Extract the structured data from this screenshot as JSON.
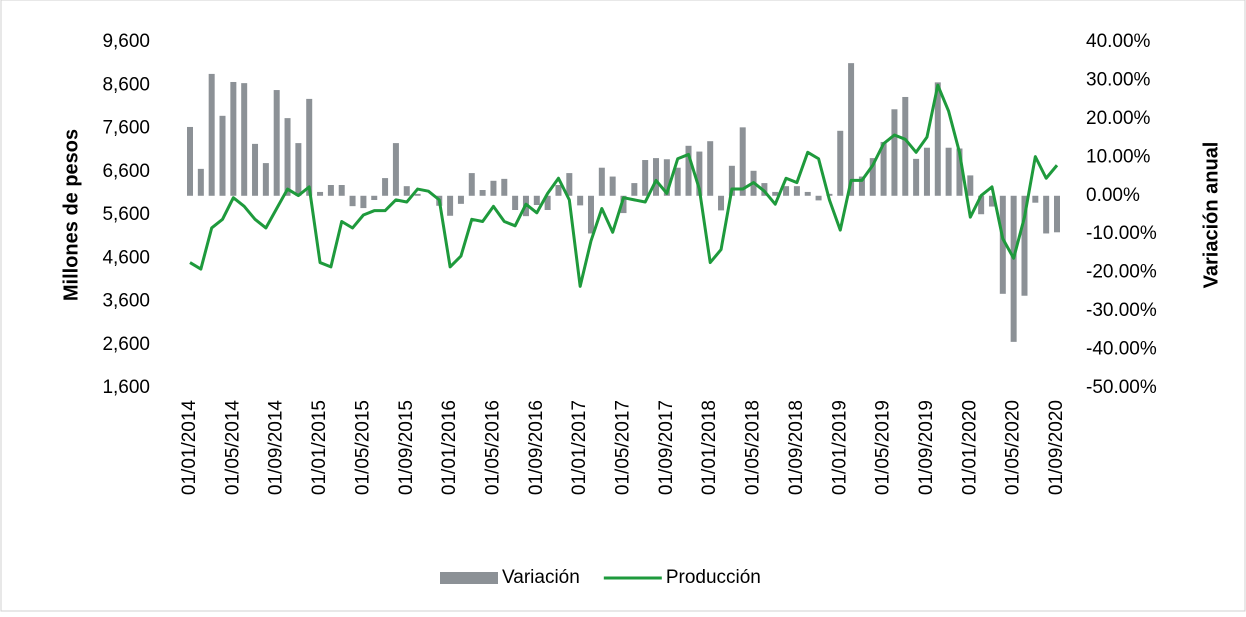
{
  "chart_data": {
    "type": "combo",
    "ylabel": "Millones de pesos",
    "y2label": "Variación anual",
    "categories": [
      "01/01/2014",
      null,
      null,
      null,
      "01/05/2014",
      null,
      null,
      null,
      "01/09/2014",
      null,
      null,
      null,
      "01/01/2015",
      null,
      null,
      null,
      "01/05/2015",
      null,
      null,
      null,
      "01/09/2015",
      null,
      null,
      null,
      "01/01/2016",
      null,
      null,
      null,
      "01/05/2016",
      null,
      null,
      null,
      "01/09/2016",
      null,
      null,
      null,
      "01/01/2017",
      null,
      null,
      null,
      "01/05/2017",
      null,
      null,
      null,
      "01/09/2017",
      null,
      null,
      null,
      "01/01/2018",
      null,
      null,
      null,
      "01/05/2018",
      null,
      null,
      null,
      "01/09/2018",
      null,
      null,
      null,
      "01/01/2019",
      null,
      null,
      null,
      "01/05/2019",
      null,
      null,
      null,
      "01/09/2019",
      null,
      null,
      null,
      "01/01/2020",
      null,
      null,
      null,
      "01/05/2020",
      null,
      null,
      null,
      "01/09/2020"
    ],
    "series": [
      {
        "name": "Variación",
        "type": "bar",
        "axis": "y2",
        "color": "#8c9196",
        "values": [
          17.9,
          7,
          31.7,
          20.8,
          29.6,
          29.3,
          13.5,
          8.5,
          27.5,
          20.2,
          13.7,
          25.2,
          1,
          2.8,
          2.8,
          -2.7,
          -3.2,
          -1.1,
          4.6,
          13.7,
          2.5,
          0.5,
          0,
          -2.6,
          -5.2,
          -2.1,
          5.9,
          1.5,
          3.9,
          4.4,
          -3.7,
          -5.3,
          -2.4,
          -3.7,
          2.8,
          5.9,
          -2.5,
          -9.8,
          7.3,
          5,
          -4.5,
          3.3,
          9.3,
          9.8,
          9.5,
          7.3,
          13,
          11.5,
          14.2,
          -3.8,
          7.8,
          17.8,
          6.5,
          3.3,
          1,
          2.5,
          2.5,
          1,
          -1.2,
          0.5,
          16.9,
          34.5,
          5,
          9.8,
          14,
          22.5,
          25.7,
          9.6,
          12.5,
          29.5,
          12.5,
          12.3,
          5.3,
          -4.8,
          -2.8,
          -25.5,
          -38,
          -26,
          -1.8,
          -9.8,
          -9.5
        ]
      },
      {
        "name": "Producción",
        "type": "line",
        "color": "#1e9a3c",
        "values": [
          4500,
          4350,
          5300,
          5500,
          6000,
          5800,
          5500,
          5300,
          5750,
          6200,
          6050,
          6250,
          4500,
          4400,
          5450,
          5300,
          5600,
          5700,
          5700,
          5950,
          5900,
          6200,
          6150,
          5950,
          4400,
          4650,
          5500,
          5450,
          5800,
          5450,
          5350,
          5850,
          5650,
          6100,
          6450,
          5950,
          3950,
          5000,
          5750,
          5200,
          6000,
          5950,
          5900,
          6400,
          6100,
          6900,
          7000,
          6200,
          4500,
          4800,
          6200,
          6200,
          6350,
          6150,
          5850,
          6450,
          6350,
          7050,
          6900,
          5950,
          5250,
          6400,
          6400,
          6750,
          7250,
          7450,
          7350,
          7050,
          7400,
          8600,
          8000,
          7050,
          5550,
          6050,
          6250,
          5050,
          4600,
          5550,
          6950,
          6450,
          6750
        ]
      }
    ],
    "ylim": [
      1600,
      9600
    ],
    "yticks": [
      {
        "value": 1600,
        "label": "1,600"
      },
      {
        "value": 2600,
        "label": "2,600"
      },
      {
        "value": 3600,
        "label": "3,600"
      },
      {
        "value": 4600,
        "label": "4,600"
      },
      {
        "value": 5600,
        "label": "5,600"
      },
      {
        "value": 6600,
        "label": "6,600"
      },
      {
        "value": 7600,
        "label": "7,600"
      },
      {
        "value": 8600,
        "label": "8,600"
      },
      {
        "value": 9600,
        "label": "9,600"
      }
    ],
    "y2lim": [
      -50,
      40
    ],
    "y2ticks": [
      {
        "value": -50,
        "label": "-50.00%"
      },
      {
        "value": -40,
        "label": "-40.00%"
      },
      {
        "value": -30,
        "label": "-30.00%"
      },
      {
        "value": -20,
        "label": "-20.00%"
      },
      {
        "value": -10,
        "label": "-10.00%"
      },
      {
        "value": 0,
        "label": "0.00%"
      },
      {
        "value": 10,
        "label": "10.00%"
      },
      {
        "value": 20,
        "label": "20.00%"
      },
      {
        "value": 30,
        "label": "30.00%"
      },
      {
        "value": 40,
        "label": "40.00%"
      }
    ],
    "legend": "bottom"
  }
}
